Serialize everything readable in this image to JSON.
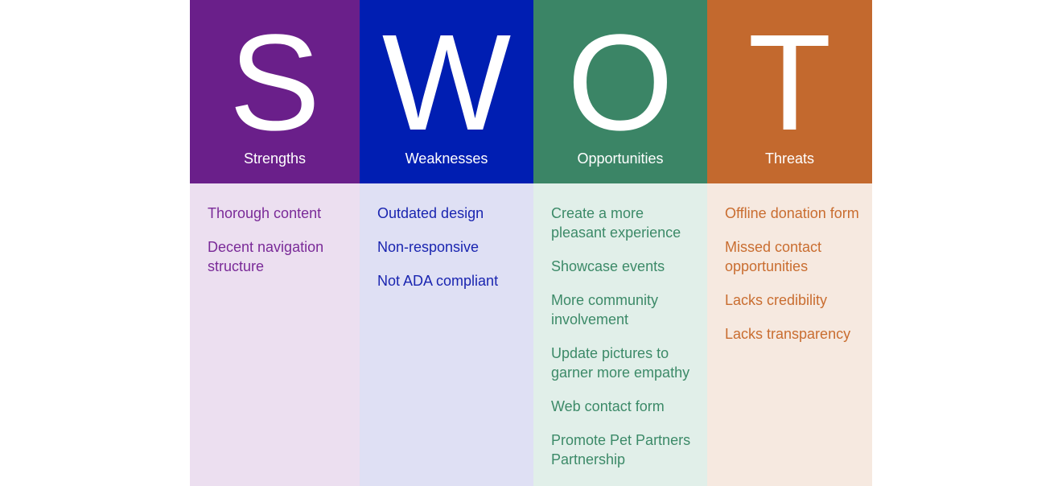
{
  "columns": [
    {
      "letter": "S",
      "title": "Strengths",
      "header_color": "#6a1f8a",
      "body_color": "#ecdff0",
      "text_color": "#7a2a98",
      "items": [
        "Thorough content",
        "Decent navigation structure"
      ]
    },
    {
      "letter": "W",
      "title": "Weaknesses",
      "header_color": "#001eb2",
      "body_color": "#dfe0f4",
      "text_color": "#1a25b0",
      "items": [
        "Outdated design",
        "Non-responsive",
        "Not ADA compliant"
      ]
    },
    {
      "letter": "O",
      "title": "Opportunities",
      "header_color": "#3b8566",
      "body_color": "#e1efe9",
      "text_color": "#3c8a68",
      "items": [
        "Create a more pleasant experience",
        "Showcase events",
        "More community involvement",
        "Update pictures to garner more empathy",
        "Web contact form",
        "Promote Pet Partners Partnership"
      ]
    },
    {
      "letter": "T",
      "title": "Threats",
      "header_color": "#c3692e",
      "body_color": "#f6e9e0",
      "text_color": "#c96d30",
      "items": [
        "Offline donation form",
        "Missed contact opportunities",
        "Lacks credibility",
        "Lacks transparency"
      ]
    }
  ]
}
